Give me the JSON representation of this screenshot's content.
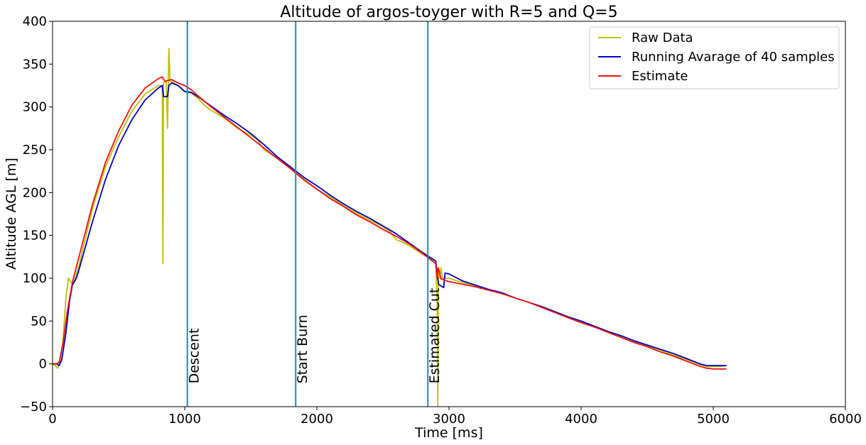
{
  "chart_data": {
    "type": "line",
    "title": "Altitude of argos-toyger with R=5 and Q=5",
    "xlabel": "Time [ms]",
    "ylabel": "Altitude AGL [m]",
    "xlim": [
      0,
      6000
    ],
    "ylim": [
      -50,
      400
    ],
    "xticks": [
      0,
      1000,
      2000,
      3000,
      4000,
      5000,
      6000
    ],
    "yticks": [
      -50,
      0,
      50,
      100,
      150,
      200,
      250,
      300,
      350,
      400
    ],
    "grid": false,
    "legend_position": "top-right",
    "series": [
      {
        "name": "Raw Data",
        "color": "#bfbf00",
        "points": [
          [
            0,
            0
          ],
          [
            20,
            -2
          ],
          [
            40,
            -5
          ],
          [
            60,
            5
          ],
          [
            80,
            30
          ],
          [
            100,
            75
          ],
          [
            120,
            100
          ],
          [
            140,
            95
          ],
          [
            160,
            95
          ],
          [
            200,
            115
          ],
          [
            300,
            180
          ],
          [
            400,
            230
          ],
          [
            500,
            265
          ],
          [
            600,
            295
          ],
          [
            700,
            315
          ],
          [
            800,
            325
          ],
          [
            830,
            325
          ],
          [
            835,
            117
          ],
          [
            840,
            328
          ],
          [
            860,
            330
          ],
          [
            870,
            275
          ],
          [
            880,
            368
          ],
          [
            890,
            330
          ],
          [
            900,
            330
          ],
          [
            950,
            325
          ],
          [
            1000,
            318
          ],
          [
            1050,
            316
          ],
          [
            1100,
            310
          ],
          [
            1150,
            302
          ],
          [
            1200,
            296
          ],
          [
            1300,
            287
          ],
          [
            1400,
            275
          ],
          [
            1500,
            267
          ],
          [
            1550,
            262
          ],
          [
            1600,
            250
          ],
          [
            1650,
            245
          ],
          [
            1700,
            240
          ],
          [
            1800,
            228
          ],
          [
            1900,
            216
          ],
          [
            2000,
            204
          ],
          [
            2100,
            195
          ],
          [
            2200,
            185
          ],
          [
            2300,
            176
          ],
          [
            2400,
            168
          ],
          [
            2500,
            160
          ],
          [
            2550,
            155
          ],
          [
            2600,
            145
          ],
          [
            2650,
            142
          ],
          [
            2700,
            138
          ],
          [
            2800,
            128
          ],
          [
            2850,
            124
          ],
          [
            2900,
            120
          ],
          [
            2910,
            70
          ],
          [
            2915,
            -50
          ],
          [
            2920,
            110
          ],
          [
            2930,
            100
          ],
          [
            2940,
            112
          ],
          [
            2950,
            100
          ],
          [
            3000,
            100
          ],
          [
            3100,
            95
          ],
          [
            3200,
            91
          ],
          [
            3300,
            87
          ],
          [
            3400,
            82
          ],
          [
            3500,
            77
          ],
          [
            3600,
            72
          ],
          [
            3700,
            67
          ],
          [
            3800,
            61
          ],
          [
            3900,
            55
          ],
          [
            4000,
            49
          ],
          [
            4100,
            44
          ],
          [
            4200,
            38
          ],
          [
            4300,
            32
          ],
          [
            4400,
            26
          ],
          [
            4500,
            21
          ],
          [
            4600,
            16
          ],
          [
            4700,
            10
          ],
          [
            4800,
            5
          ],
          [
            4900,
            -1
          ],
          [
            4950,
            -3
          ],
          [
            5000,
            -3
          ],
          [
            5050,
            -3
          ],
          [
            5100,
            -2
          ]
        ]
      },
      {
        "name": "Running Avarage of 40 samples",
        "color": "#0000cc",
        "points": [
          [
            0,
            0
          ],
          [
            30,
            0
          ],
          [
            50,
            -2
          ],
          [
            70,
            5
          ],
          [
            100,
            35
          ],
          [
            130,
            75
          ],
          [
            150,
            92
          ],
          [
            180,
            100
          ],
          [
            200,
            110
          ],
          [
            300,
            165
          ],
          [
            400,
            215
          ],
          [
            500,
            255
          ],
          [
            600,
            285
          ],
          [
            700,
            308
          ],
          [
            800,
            322
          ],
          [
            830,
            325
          ],
          [
            840,
            312
          ],
          [
            870,
            312
          ],
          [
            880,
            325
          ],
          [
            900,
            328
          ],
          [
            950,
            325
          ],
          [
            1000,
            318
          ],
          [
            1050,
            317
          ],
          [
            1100,
            312
          ],
          [
            1200,
            301
          ],
          [
            1300,
            290
          ],
          [
            1400,
            280
          ],
          [
            1500,
            269
          ],
          [
            1600,
            256
          ],
          [
            1700,
            242
          ],
          [
            1800,
            230
          ],
          [
            1900,
            218
          ],
          [
            2000,
            208
          ],
          [
            2100,
            197
          ],
          [
            2200,
            187
          ],
          [
            2300,
            178
          ],
          [
            2400,
            170
          ],
          [
            2500,
            161
          ],
          [
            2600,
            152
          ],
          [
            2700,
            141
          ],
          [
            2800,
            130
          ],
          [
            2900,
            120
          ],
          [
            2920,
            93
          ],
          [
            2930,
            92
          ],
          [
            2960,
            89
          ],
          [
            2970,
            106
          ],
          [
            3000,
            105
          ],
          [
            3100,
            97
          ],
          [
            3200,
            92
          ],
          [
            3300,
            87
          ],
          [
            3400,
            83
          ],
          [
            3500,
            77
          ],
          [
            3600,
            72
          ],
          [
            3700,
            67
          ],
          [
            3800,
            61
          ],
          [
            3900,
            55
          ],
          [
            4000,
            50
          ],
          [
            4100,
            44
          ],
          [
            4200,
            38
          ],
          [
            4300,
            33
          ],
          [
            4400,
            27
          ],
          [
            4500,
            22
          ],
          [
            4600,
            17
          ],
          [
            4700,
            12
          ],
          [
            4800,
            6
          ],
          [
            4900,
            0
          ],
          [
            4950,
            -2
          ],
          [
            5000,
            -2
          ],
          [
            5050,
            -2
          ],
          [
            5100,
            -2
          ]
        ]
      },
      {
        "name": "Estimate",
        "color": "#ee1111",
        "points": [
          [
            0,
            0
          ],
          [
            30,
            0
          ],
          [
            50,
            2
          ],
          [
            80,
            25
          ],
          [
            110,
            60
          ],
          [
            150,
            95
          ],
          [
            200,
            125
          ],
          [
            300,
            185
          ],
          [
            400,
            235
          ],
          [
            500,
            272
          ],
          [
            600,
            302
          ],
          [
            700,
            322
          ],
          [
            800,
            333
          ],
          [
            830,
            335
          ],
          [
            850,
            330
          ],
          [
            900,
            332
          ],
          [
            950,
            328
          ],
          [
            1000,
            325
          ],
          [
            1050,
            320
          ],
          [
            1100,
            313
          ],
          [
            1200,
            300
          ],
          [
            1300,
            288
          ],
          [
            1400,
            276
          ],
          [
            1500,
            264
          ],
          [
            1600,
            252
          ],
          [
            1700,
            240
          ],
          [
            1800,
            228
          ],
          [
            1900,
            215
          ],
          [
            2000,
            204
          ],
          [
            2100,
            193
          ],
          [
            2200,
            184
          ],
          [
            2300,
            174
          ],
          [
            2400,
            166
          ],
          [
            2500,
            157
          ],
          [
            2600,
            149
          ],
          [
            2700,
            140
          ],
          [
            2800,
            129
          ],
          [
            2900,
            117
          ],
          [
            2910,
            100
          ],
          [
            2920,
            112
          ],
          [
            2940,
            99
          ],
          [
            3000,
            96
          ],
          [
            3100,
            93
          ],
          [
            3200,
            90
          ],
          [
            3300,
            86
          ],
          [
            3400,
            82
          ],
          [
            3500,
            77
          ],
          [
            3600,
            72
          ],
          [
            3700,
            66
          ],
          [
            3800,
            60
          ],
          [
            3900,
            54
          ],
          [
            4000,
            48
          ],
          [
            4100,
            43
          ],
          [
            4200,
            37
          ],
          [
            4300,
            31
          ],
          [
            4400,
            25
          ],
          [
            4500,
            20
          ],
          [
            4600,
            14
          ],
          [
            4700,
            9
          ],
          [
            4800,
            3
          ],
          [
            4900,
            -3
          ],
          [
            4950,
            -5
          ],
          [
            5000,
            -6
          ],
          [
            5050,
            -6
          ],
          [
            5100,
            -6
          ]
        ]
      }
    ],
    "vertical_lines": [
      {
        "x": 1020,
        "label": "Descent",
        "color": "#2e86b1"
      },
      {
        "x": 1840,
        "label": "Start Burn",
        "color": "#2e86b1"
      },
      {
        "x": 2840,
        "label": "Estimated Cut",
        "color": "#2e86b1"
      }
    ]
  }
}
